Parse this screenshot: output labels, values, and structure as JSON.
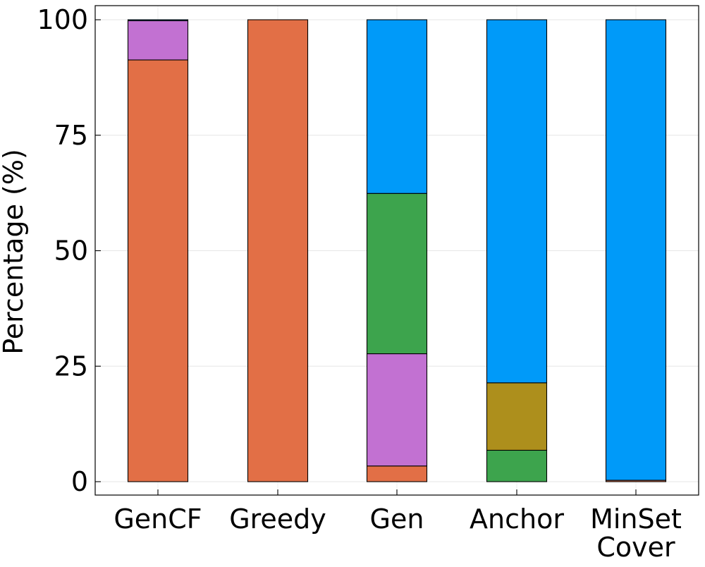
{
  "chart_data": {
    "type": "bar",
    "stacked": true,
    "title": "",
    "xlabel": "",
    "ylabel": "Percentage (%)",
    "ylim": [
      0,
      100
    ],
    "yticks": [
      0,
      25,
      50,
      75,
      100
    ],
    "grid": true,
    "legend": "none",
    "categories": [
      {
        "label_lines": [
          "GenCF"
        ]
      },
      {
        "label_lines": [
          "Greedy"
        ]
      },
      {
        "label_lines": [
          "Gen"
        ]
      },
      {
        "label_lines": [
          "Anchor"
        ]
      },
      {
        "label_lines": [
          "MinSet",
          "Cover"
        ]
      }
    ],
    "series": [
      {
        "color": "#e26f46",
        "values": [
          91.3,
          100,
          3.4,
          0,
          0.3
        ]
      },
      {
        "color": "#c271d2",
        "values": [
          8.5,
          0,
          24.3,
          0,
          0
        ]
      },
      {
        "color": "#3da44d",
        "values": [
          0,
          0,
          34.7,
          6.8,
          0
        ]
      },
      {
        "color": "#ad8f1c",
        "values": [
          0,
          0,
          0,
          14.6,
          0
        ]
      },
      {
        "color": "#009af9",
        "values": [
          0.2,
          0,
          37.6,
          78.6,
          99.7
        ]
      }
    ]
  }
}
